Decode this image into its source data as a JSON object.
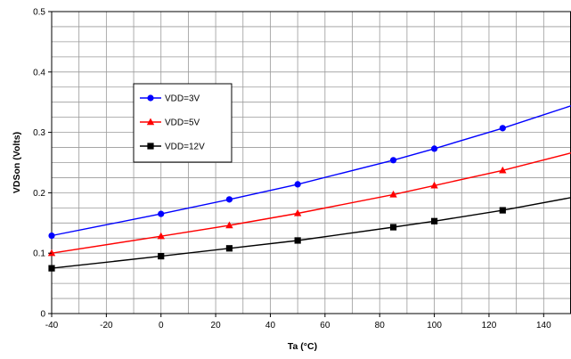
{
  "chart_data": {
    "type": "line",
    "title": "",
    "xlabel": "Ta (°C)",
    "ylabel": "VDSon (Volts)",
    "xlim": [
      -40,
      150
    ],
    "ylim": [
      0,
      0.5
    ],
    "x_ticks": [
      "-40",
      "-20",
      "0",
      "20",
      "40",
      "60",
      "80",
      "100",
      "120",
      "140"
    ],
    "y_ticks": [
      "0",
      "0.1",
      "0.2",
      "0.3",
      "0.4",
      "0.5"
    ],
    "grid": true,
    "legend_position": "upper-left",
    "series": [
      {
        "name": "VDD=3V",
        "color": "#0000ff",
        "marker": "circle",
        "x": [
          -40,
          0,
          25,
          50,
          85,
          100,
          125
        ],
        "y": [
          0.129,
          0.165,
          0.189,
          0.214,
          0.254,
          0.273,
          0.307
        ],
        "curve_x": [
          -40,
          0,
          25,
          50,
          85,
          100,
          125,
          150
        ],
        "curve_y": [
          0.129,
          0.165,
          0.189,
          0.214,
          0.254,
          0.273,
          0.307,
          0.344
        ]
      },
      {
        "name": "VDD=5V",
        "color": "#ff0000",
        "marker": "triangle",
        "x": [
          -40,
          0,
          25,
          50,
          85,
          100,
          125
        ],
        "y": [
          0.1,
          0.128,
          0.146,
          0.166,
          0.197,
          0.212,
          0.237
        ],
        "curve_x": [
          -40,
          0,
          25,
          50,
          85,
          100,
          125,
          150
        ],
        "curve_y": [
          0.1,
          0.128,
          0.146,
          0.166,
          0.197,
          0.212,
          0.237,
          0.266
        ]
      },
      {
        "name": "VDD=12V",
        "color": "#000000",
        "marker": "square",
        "x": [
          -40,
          0,
          25,
          50,
          85,
          100,
          125
        ],
        "y": [
          0.075,
          0.095,
          0.108,
          0.121,
          0.143,
          0.153,
          0.171
        ],
        "curve_x": [
          -40,
          0,
          25,
          50,
          85,
          100,
          125,
          150
        ],
        "curve_y": [
          0.075,
          0.095,
          0.108,
          0.121,
          0.143,
          0.153,
          0.171,
          0.192
        ]
      }
    ]
  }
}
